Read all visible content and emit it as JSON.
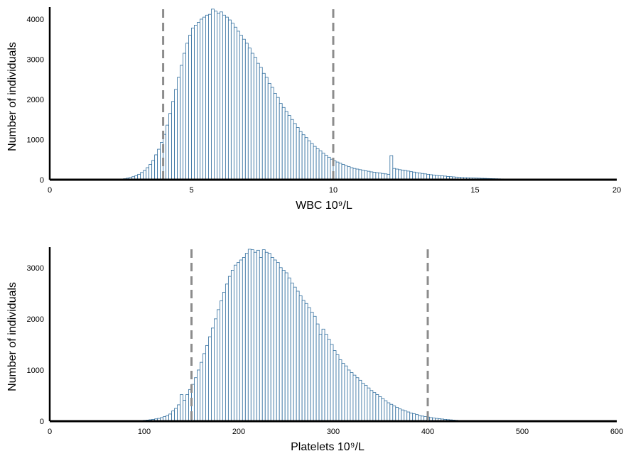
{
  "colors": {
    "bar_fill": "#ffffff",
    "bar_stroke": "#2f6d9e",
    "threshold": "#8c8c8c",
    "axis": "#000000"
  },
  "chart_data": [
    {
      "type": "bar",
      "subtype": "histogram",
      "xlabel": "WBC 10⁹/L",
      "ylabel": "Number of individuals",
      "xlim": [
        0,
        20
      ],
      "ylim": [
        0,
        4300
      ],
      "xticks": [
        "0",
        "5",
        "10",
        "15",
        "20"
      ],
      "yticks": [
        "0",
        "1000",
        "2000",
        "3000",
        "4000"
      ],
      "thresholds": [
        4,
        10
      ],
      "bin_start": 2.0,
      "bin_width": 0.1,
      "values": [
        2,
        3,
        5,
        8,
        12,
        18,
        25,
        38,
        55,
        75,
        100,
        135,
        180,
        230,
        300,
        380,
        480,
        620,
        760,
        930,
        1130,
        1360,
        1650,
        1950,
        2250,
        2550,
        2850,
        3150,
        3400,
        3600,
        3780,
        3850,
        3920,
        4000,
        4050,
        4100,
        4120,
        4250,
        4200,
        4150,
        4180,
        4100,
        4050,
        3980,
        3900,
        3800,
        3700,
        3600,
        3500,
        3400,
        3280,
        3150,
        3050,
        2900,
        2800,
        2650,
        2550,
        2400,
        2300,
        2150,
        2050,
        1900,
        1800,
        1700,
        1600,
        1500,
        1400,
        1300,
        1200,
        1120,
        1050,
        970,
        900,
        830,
        770,
        720,
        660,
        610,
        560,
        510,
        470,
        440,
        410,
        380,
        350,
        325,
        300,
        280,
        265,
        250,
        235,
        220,
        210,
        195,
        185,
        175,
        165,
        155,
        145,
        135,
        600,
        280,
        265,
        250,
        240,
        230,
        215,
        200,
        190,
        175,
        165,
        155,
        145,
        135,
        125,
        115,
        105,
        100,
        95,
        90,
        80,
        75,
        70,
        65,
        60,
        55,
        50,
        48,
        45,
        42,
        40,
        38,
        35,
        33,
        30,
        28,
        26,
        24,
        22,
        20,
        18,
        16,
        14,
        12,
        10,
        8,
        7,
        6,
        5,
        4,
        3,
        2,
        2,
        1,
        1,
        1
      ]
    },
    {
      "type": "bar",
      "subtype": "histogram",
      "xlabel": "Platelets 10⁹/L",
      "ylabel": "Number of individuals",
      "xlim": [
        0,
        600
      ],
      "ylim": [
        0,
        3400
      ],
      "xticks": [
        "0",
        "100",
        "200",
        "300",
        "400",
        "500",
        "600"
      ],
      "yticks": [
        "0",
        "1000",
        "2000",
        "3000"
      ],
      "thresholds": [
        150,
        400
      ],
      "bin_start": 90,
      "bin_width": 3,
      "values": [
        10,
        12,
        15,
        18,
        22,
        28,
        35,
        45,
        55,
        70,
        90,
        110,
        140,
        200,
        250,
        320,
        520,
        410,
        520,
        620,
        720,
        850,
        1000,
        1150,
        1320,
        1480,
        1650,
        1820,
        2000,
        2180,
        2350,
        2520,
        2680,
        2830,
        2950,
        3050,
        3100,
        3150,
        3200,
        3280,
        3360,
        3350,
        3300,
        3340,
        3200,
        3350,
        3300,
        3280,
        3200,
        3150,
        3100,
        3000,
        2950,
        2900,
        2800,
        2700,
        2620,
        2540,
        2450,
        2360,
        2300,
        2220,
        2130,
        2050,
        1900,
        1700,
        1800,
        1700,
        1600,
        1500,
        1380,
        1300,
        1200,
        1130,
        1080,
        1000,
        950,
        900,
        850,
        800,
        740,
        700,
        650,
        600,
        560,
        520,
        480,
        440,
        400,
        360,
        330,
        300,
        270,
        240,
        220,
        200,
        180,
        160,
        145,
        130,
        110,
        100,
        90,
        80,
        70,
        62,
        55,
        48,
        42,
        36,
        30,
        26,
        22,
        18,
        15,
        12,
        10,
        8,
        6,
        5,
        4,
        3,
        2,
        2
      ]
    }
  ]
}
